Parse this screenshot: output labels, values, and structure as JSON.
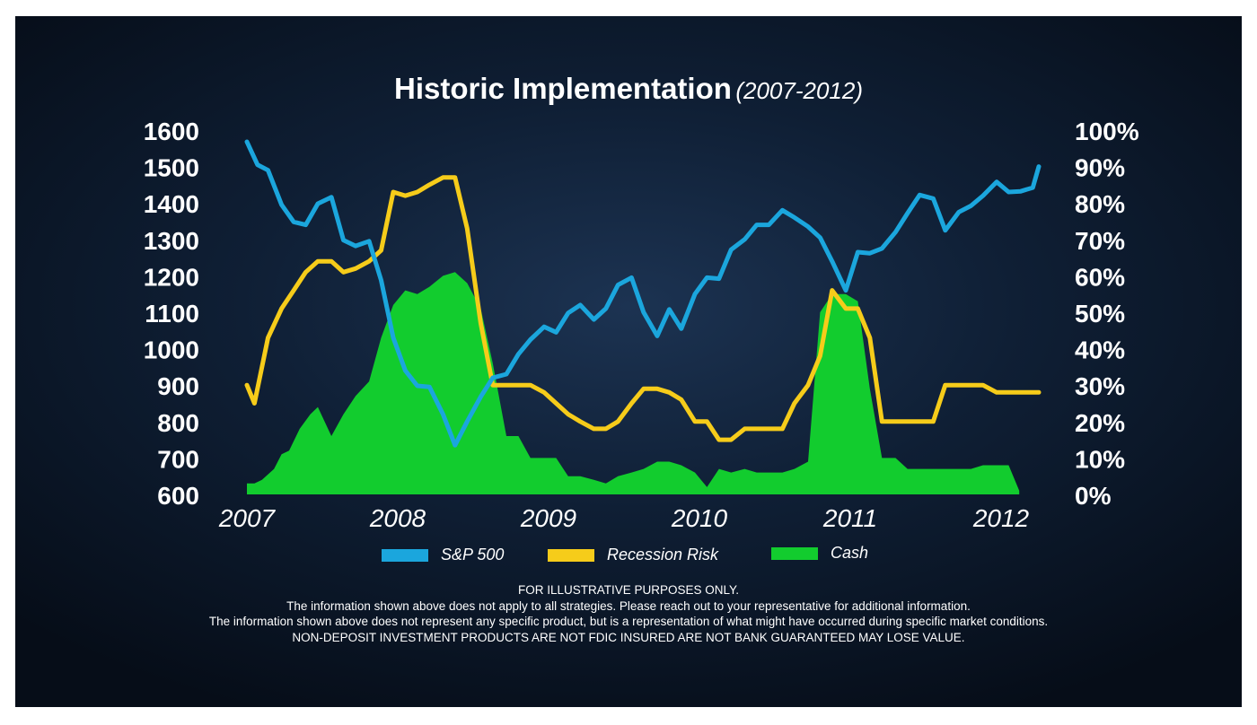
{
  "chart_data": {
    "type": "line",
    "title": "Historic Implementation",
    "subtitle": "(2007-2012)",
    "x_tick_labels": [
      "2007",
      "2008",
      "2009",
      "2010",
      "2011",
      "2012"
    ],
    "x_range": [
      2007.0,
      2012.25
    ],
    "y_left_range": [
      600,
      1600
    ],
    "y_left_ticks": [
      "1600",
      "1500",
      "1400",
      "1300",
      "1200",
      "1100",
      "1000",
      "900",
      "800",
      "700",
      "600"
    ],
    "y_right_range": [
      0,
      100
    ],
    "y_right_ticks": [
      "100%",
      "90%",
      "80%",
      "70%",
      "60%",
      "50%",
      "40%",
      "30%",
      "20%",
      "10%",
      "0%"
    ],
    "grid": false,
    "legend_position": "bottom",
    "series": [
      {
        "name": "S&P 500",
        "axis": "left",
        "style": "line",
        "color": "#1ba6dd",
        "points": [
          [
            2007.0,
            1568
          ],
          [
            2007.07,
            1505
          ],
          [
            2007.14,
            1490
          ],
          [
            2007.23,
            1395
          ],
          [
            2007.31,
            1348
          ],
          [
            2007.39,
            1340
          ],
          [
            2007.47,
            1398
          ],
          [
            2007.56,
            1416
          ],
          [
            2007.64,
            1298
          ],
          [
            2007.72,
            1282
          ],
          [
            2007.81,
            1295
          ],
          [
            2007.89,
            1188
          ],
          [
            2007.97,
            1030
          ],
          [
            2008.05,
            940
          ],
          [
            2008.13,
            898
          ],
          [
            2008.21,
            895
          ],
          [
            2008.3,
            820
          ],
          [
            2008.38,
            735
          ],
          [
            2008.46,
            800
          ],
          [
            2008.55,
            868
          ],
          [
            2008.63,
            920
          ],
          [
            2008.72,
            930
          ],
          [
            2008.8,
            985
          ],
          [
            2008.88,
            1025
          ],
          [
            2008.97,
            1060
          ],
          [
            2009.05,
            1045
          ],
          [
            2009.13,
            1098
          ],
          [
            2009.21,
            1120
          ],
          [
            2009.3,
            1080
          ],
          [
            2009.38,
            1110
          ],
          [
            2009.46,
            1175
          ],
          [
            2009.55,
            1195
          ],
          [
            2009.63,
            1100
          ],
          [
            2009.72,
            1035
          ],
          [
            2009.8,
            1108
          ],
          [
            2009.88,
            1055
          ],
          [
            2009.97,
            1150
          ],
          [
            2010.05,
            1195
          ],
          [
            2010.13,
            1192
          ],
          [
            2010.21,
            1272
          ],
          [
            2010.3,
            1300
          ],
          [
            2010.38,
            1340
          ],
          [
            2010.46,
            1340
          ],
          [
            2010.55,
            1380
          ],
          [
            2010.63,
            1360
          ],
          [
            2010.72,
            1335
          ],
          [
            2010.8,
            1305
          ],
          [
            2010.88,
            1240
          ],
          [
            2010.97,
            1160
          ],
          [
            2011.05,
            1265
          ],
          [
            2011.13,
            1262
          ],
          [
            2011.21,
            1275
          ],
          [
            2011.3,
            1320
          ],
          [
            2011.38,
            1372
          ],
          [
            2011.46,
            1422
          ],
          [
            2011.55,
            1412
          ],
          [
            2011.63,
            1325
          ],
          [
            2011.72,
            1375
          ],
          [
            2011.8,
            1392
          ],
          [
            2011.88,
            1420
          ],
          [
            2011.97,
            1458
          ],
          [
            2012.05,
            1430
          ],
          [
            2012.13,
            1432
          ],
          [
            2012.21,
            1442
          ],
          [
            2012.25,
            1500
          ]
        ]
      },
      {
        "name": "Recession Risk",
        "axis": "right",
        "style": "line",
        "color": "#f6cc1a",
        "points": [
          [
            2007.0,
            30
          ],
          [
            2007.05,
            25
          ],
          [
            2007.14,
            43
          ],
          [
            2007.23,
            51
          ],
          [
            2007.31,
            56
          ],
          [
            2007.39,
            61
          ],
          [
            2007.47,
            64
          ],
          [
            2007.56,
            64
          ],
          [
            2007.64,
            61
          ],
          [
            2007.72,
            62
          ],
          [
            2007.81,
            64
          ],
          [
            2007.89,
            67
          ],
          [
            2007.97,
            83
          ],
          [
            2008.05,
            82
          ],
          [
            2008.13,
            83
          ],
          [
            2008.21,
            85
          ],
          [
            2008.3,
            87
          ],
          [
            2008.38,
            87
          ],
          [
            2008.46,
            73
          ],
          [
            2008.55,
            47
          ],
          [
            2008.63,
            30
          ],
          [
            2008.72,
            30
          ],
          [
            2008.8,
            30
          ],
          [
            2008.88,
            30
          ],
          [
            2008.97,
            28
          ],
          [
            2009.05,
            25
          ],
          [
            2009.13,
            22
          ],
          [
            2009.21,
            20
          ],
          [
            2009.3,
            18
          ],
          [
            2009.38,
            18
          ],
          [
            2009.46,
            20
          ],
          [
            2009.55,
            25
          ],
          [
            2009.63,
            29
          ],
          [
            2009.72,
            29
          ],
          [
            2009.8,
            28
          ],
          [
            2009.88,
            26
          ],
          [
            2009.97,
            20
          ],
          [
            2010.05,
            20
          ],
          [
            2010.13,
            15
          ],
          [
            2010.21,
            15
          ],
          [
            2010.3,
            18
          ],
          [
            2010.38,
            18
          ],
          [
            2010.46,
            18
          ],
          [
            2010.55,
            18
          ],
          [
            2010.63,
            25
          ],
          [
            2010.72,
            30
          ],
          [
            2010.8,
            38
          ],
          [
            2010.88,
            56
          ],
          [
            2010.97,
            51
          ],
          [
            2011.05,
            51
          ],
          [
            2011.13,
            43
          ],
          [
            2011.21,
            20
          ],
          [
            2011.3,
            20
          ],
          [
            2011.38,
            20
          ],
          [
            2011.46,
            20
          ],
          [
            2011.55,
            20
          ],
          [
            2011.63,
            30
          ],
          [
            2011.72,
            30
          ],
          [
            2011.8,
            30
          ],
          [
            2011.88,
            30
          ],
          [
            2011.97,
            28
          ],
          [
            2012.05,
            28
          ],
          [
            2012.13,
            28
          ],
          [
            2012.25,
            28
          ]
        ]
      },
      {
        "name": "Cash",
        "axis": "right",
        "style": "area",
        "color": "#12cc2e",
        "points": [
          [
            2007.0,
            3
          ],
          [
            2007.05,
            3
          ],
          [
            2007.1,
            4
          ],
          [
            2007.18,
            7
          ],
          [
            2007.23,
            11
          ],
          [
            2007.28,
            12
          ],
          [
            2007.35,
            18
          ],
          [
            2007.42,
            22
          ],
          [
            2007.47,
            24
          ],
          [
            2007.56,
            16
          ],
          [
            2007.64,
            22
          ],
          [
            2007.72,
            27
          ],
          [
            2007.81,
            31
          ],
          [
            2007.89,
            43
          ],
          [
            2007.97,
            52
          ],
          [
            2008.05,
            56
          ],
          [
            2008.13,
            55
          ],
          [
            2008.21,
            57
          ],
          [
            2008.3,
            60
          ],
          [
            2008.38,
            61
          ],
          [
            2008.46,
            58
          ],
          [
            2008.55,
            51
          ],
          [
            2008.63,
            36
          ],
          [
            2008.72,
            16
          ],
          [
            2008.8,
            16
          ],
          [
            2008.88,
            10
          ],
          [
            2008.97,
            10
          ],
          [
            2009.05,
            10
          ],
          [
            2009.13,
            5
          ],
          [
            2009.21,
            5
          ],
          [
            2009.3,
            4
          ],
          [
            2009.38,
            3
          ],
          [
            2009.46,
            5
          ],
          [
            2009.55,
            6
          ],
          [
            2009.63,
            7
          ],
          [
            2009.72,
            9
          ],
          [
            2009.8,
            9
          ],
          [
            2009.88,
            8
          ],
          [
            2009.97,
            6
          ],
          [
            2010.05,
            2
          ],
          [
            2010.13,
            7
          ],
          [
            2010.21,
            6
          ],
          [
            2010.3,
            7
          ],
          [
            2010.38,
            6
          ],
          [
            2010.46,
            6
          ],
          [
            2010.55,
            6
          ],
          [
            2010.63,
            7
          ],
          [
            2010.72,
            9
          ],
          [
            2010.8,
            50
          ],
          [
            2010.88,
            55
          ],
          [
            2010.97,
            55
          ],
          [
            2011.05,
            53
          ],
          [
            2011.13,
            29
          ],
          [
            2011.21,
            10
          ],
          [
            2011.3,
            10
          ],
          [
            2011.38,
            7
          ],
          [
            2011.46,
            7
          ],
          [
            2011.55,
            7
          ],
          [
            2011.63,
            7
          ],
          [
            2011.72,
            7
          ],
          [
            2011.8,
            7
          ],
          [
            2011.88,
            8
          ],
          [
            2011.97,
            8
          ],
          [
            2012.05,
            8
          ],
          [
            2012.12,
            1
          ]
        ]
      }
    ]
  },
  "legend": [
    {
      "label": "S&P 500",
      "color": "#1ba6dd"
    },
    {
      "label": "Recession Risk",
      "color": "#f6cc1a"
    },
    {
      "label": "Cash",
      "color": "#12cc2e"
    }
  ],
  "footer": {
    "line1": "FOR ILLUSTRATIVE PURPOSES ONLY.",
    "line2": "The information shown above does not apply to all strategies. Please reach out to your representative for additional information.",
    "line3": "The information shown above does not represent any specific product, but is a representation of what might have occurred during specific market conditions.",
    "line4": "NON-DEPOSIT INVESTMENT PRODUCTS ARE NOT FDIC INSURED ARE NOT BANK GUARANTEED MAY LOSE VALUE."
  }
}
